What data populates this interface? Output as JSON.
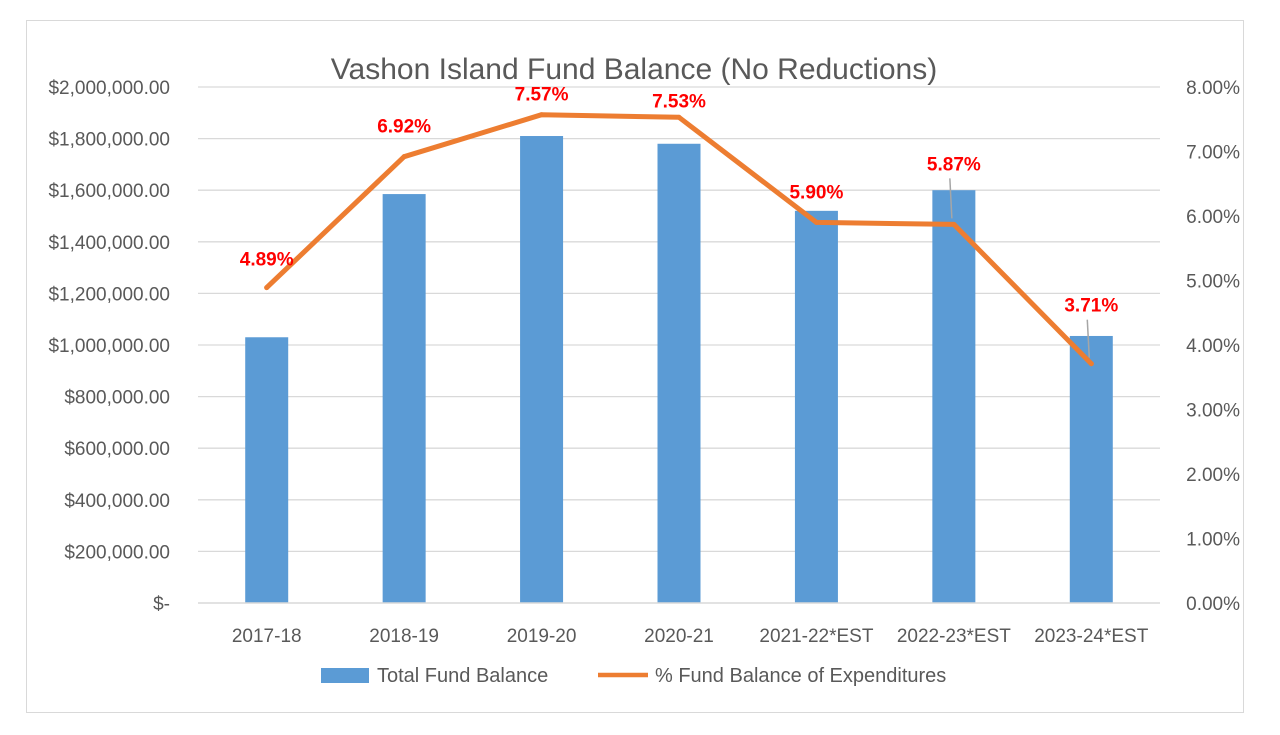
{
  "chart_data": {
    "type": "bar",
    "title": "Vashon Island Fund Balance (No Reductions)",
    "categories": [
      "2017-18",
      "2018-19",
      "2019-20",
      "2020-21",
      "2021-22*EST",
      "2022-23*EST",
      "2023-24*EST"
    ],
    "series": [
      {
        "name": "Total Fund Balance",
        "type": "bar",
        "axis": "left",
        "color": "#5b9bd5",
        "values": [
          1030000,
          1585000,
          1810000,
          1780000,
          1520000,
          1600000,
          1035000
        ]
      },
      {
        "name": "% Fund Balance of Expenditures",
        "type": "line",
        "axis": "right",
        "color": "#ed7d31",
        "values": [
          4.89,
          6.92,
          7.57,
          7.53,
          5.9,
          5.87,
          3.71
        ],
        "data_labels": [
          "4.89%",
          "6.92%",
          "7.57%",
          "7.53%",
          "5.90%",
          "5.87%",
          "3.71%"
        ]
      }
    ],
    "y_left": {
      "ylim": [
        0,
        2000000
      ],
      "tick_values": [
        0,
        200000,
        400000,
        600000,
        800000,
        1000000,
        1200000,
        1400000,
        1600000,
        1800000,
        2000000
      ],
      "tick_labels": [
        "$-",
        "$200,000.00",
        "$400,000.00",
        "$600,000.00",
        "$800,000.00",
        "$1,000,000.00",
        "$1,200,000.00",
        "$1,400,000.00",
        "$1,600,000.00",
        "$1,800,000.00",
        "$2,000,000.00"
      ]
    },
    "y_right": {
      "ylim": [
        0,
        8
      ],
      "tick_values": [
        0,
        1,
        2,
        3,
        4,
        5,
        6,
        7,
        8
      ],
      "tick_labels": [
        "0.00%",
        "1.00%",
        "2.00%",
        "3.00%",
        "4.00%",
        "5.00%",
        "6.00%",
        "7.00%",
        "8.00%"
      ]
    },
    "grid": true,
    "legend": "bottom-center",
    "label_color": "#ff0000",
    "grid_color": "#d9d9d9"
  }
}
